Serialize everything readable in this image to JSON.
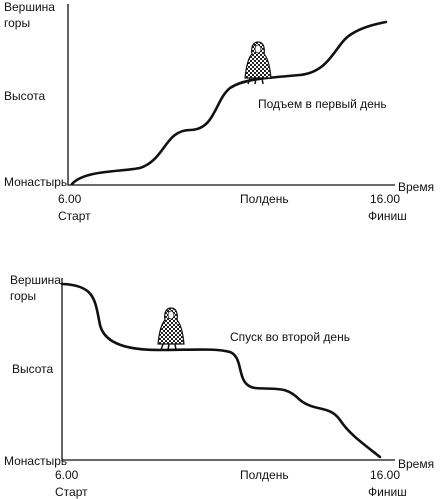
{
  "panels": [
    {
      "y_labels": {
        "top": [
          "Вершина",
          "горы"
        ],
        "middle": "Высота",
        "bottom": "Монастырь"
      },
      "x_axis_label": "Время",
      "x_labels": {
        "start_time": "6.00",
        "start": "Старт",
        "noon": "Полдень",
        "end_time": "16.00",
        "end": "Финиш"
      },
      "caption": "Подъем в первый день"
    },
    {
      "y_labels": {
        "top": [
          "Вершина",
          "горы"
        ],
        "middle": "Высота",
        "bottom": "Монастырь"
      },
      "x_axis_label": "Время",
      "x_labels": {
        "start_time": "6.00",
        "start": "Старт",
        "noon": "Полдень",
        "end_time": "16.00",
        "end": "Финиш"
      },
      "caption": "Спуск во второй день"
    }
  ]
}
